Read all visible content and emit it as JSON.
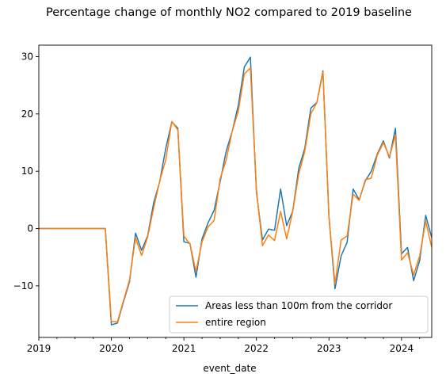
{
  "chart_data": {
    "type": "line",
    "title": "Percentage change of monthly NO2 compared to 2019 baseline",
    "xlabel": "event_date",
    "ylabel": "",
    "x_start": "2019-01",
    "x_end": "2024-06",
    "xlim": [
      "2019-01",
      "2024-06"
    ],
    "ylim": [
      -19,
      32
    ],
    "x_tick_labels": [
      "2019",
      "2020",
      "2021",
      "2022",
      "2023",
      "2024"
    ],
    "y_ticks": [
      -10,
      0,
      10,
      20,
      30
    ],
    "y_tick_labels": [
      "−10",
      "0",
      "10",
      "20",
      "30"
    ],
    "legend_position": "lower-right",
    "grid": false,
    "x": [
      "2019-01",
      "2019-02",
      "2019-03",
      "2019-04",
      "2019-05",
      "2019-06",
      "2019-07",
      "2019-08",
      "2019-09",
      "2019-10",
      "2019-11",
      "2019-12",
      "2020-01",
      "2020-02",
      "2020-03",
      "2020-04",
      "2020-05",
      "2020-06",
      "2020-07",
      "2020-08",
      "2020-09",
      "2020-10",
      "2020-11",
      "2020-12",
      "2021-01",
      "2021-02",
      "2021-03",
      "2021-04",
      "2021-05",
      "2021-06",
      "2021-07",
      "2021-08",
      "2021-09",
      "2021-10",
      "2021-11",
      "2021-12",
      "2022-01",
      "2022-02",
      "2022-03",
      "2022-04",
      "2022-05",
      "2022-06",
      "2022-07",
      "2022-08",
      "2022-09",
      "2022-10",
      "2022-11",
      "2022-12",
      "2023-01",
      "2023-02",
      "2023-03",
      "2023-04",
      "2023-05",
      "2023-06",
      "2023-07",
      "2023-08",
      "2023-09",
      "2023-10",
      "2023-11",
      "2023-12",
      "2024-01",
      "2024-02",
      "2024-03",
      "2024-04",
      "2024-05",
      "2024-06"
    ],
    "series": [
      {
        "name": "Areas less than 100m from the corridor",
        "color": "#1f77b4",
        "values": [
          0,
          0,
          0,
          0,
          0,
          0,
          0,
          0,
          0,
          0,
          0,
          0,
          -16.8,
          -16.5,
          -12.8,
          -9.3,
          -0.8,
          -3.8,
          -1.3,
          4.5,
          8.2,
          14.0,
          18.6,
          17.5,
          -2.3,
          -2.6,
          -8.5,
          -1.8,
          1.0,
          3.2,
          8.2,
          13.5,
          17.0,
          21.5,
          28.2,
          29.9,
          6.3,
          -2.0,
          -0.1,
          -0.3,
          6.9,
          0.5,
          3.0,
          10.5,
          14.0,
          21.0,
          22.0,
          27.5,
          2.0,
          -10.5,
          -4.8,
          -2.4,
          6.9,
          5.0,
          8.3,
          10.0,
          13.0,
          15.3,
          12.3,
          17.5,
          -4.4,
          -3.3,
          -9.1,
          -5.6,
          2.3,
          -1.6
        ]
      },
      {
        "name": "entire region",
        "color": "#ff7f0e",
        "values": [
          0,
          0,
          0,
          0,
          0,
          0,
          0,
          0,
          0,
          0,
          0,
          0,
          -16.2,
          -16.3,
          -12.6,
          -9.0,
          -1.6,
          -4.7,
          -1.5,
          3.6,
          8.3,
          12.0,
          18.7,
          17.2,
          -1.3,
          -2.7,
          -7.5,
          -2.3,
          0.3,
          1.4,
          8.7,
          12.0,
          17.0,
          20.5,
          27.0,
          28.0,
          6.7,
          -3.0,
          -1.1,
          -2.1,
          3.0,
          -1.8,
          3.0,
          9.5,
          13.5,
          20.0,
          22.0,
          27.3,
          2.0,
          -9.7,
          -2.0,
          -1.3,
          6.0,
          4.9,
          8.5,
          8.8,
          12.8,
          15.0,
          12.5,
          16.3,
          -5.5,
          -4.2,
          -8.1,
          -4.8,
          1.3,
          -3.3
        ]
      }
    ]
  }
}
